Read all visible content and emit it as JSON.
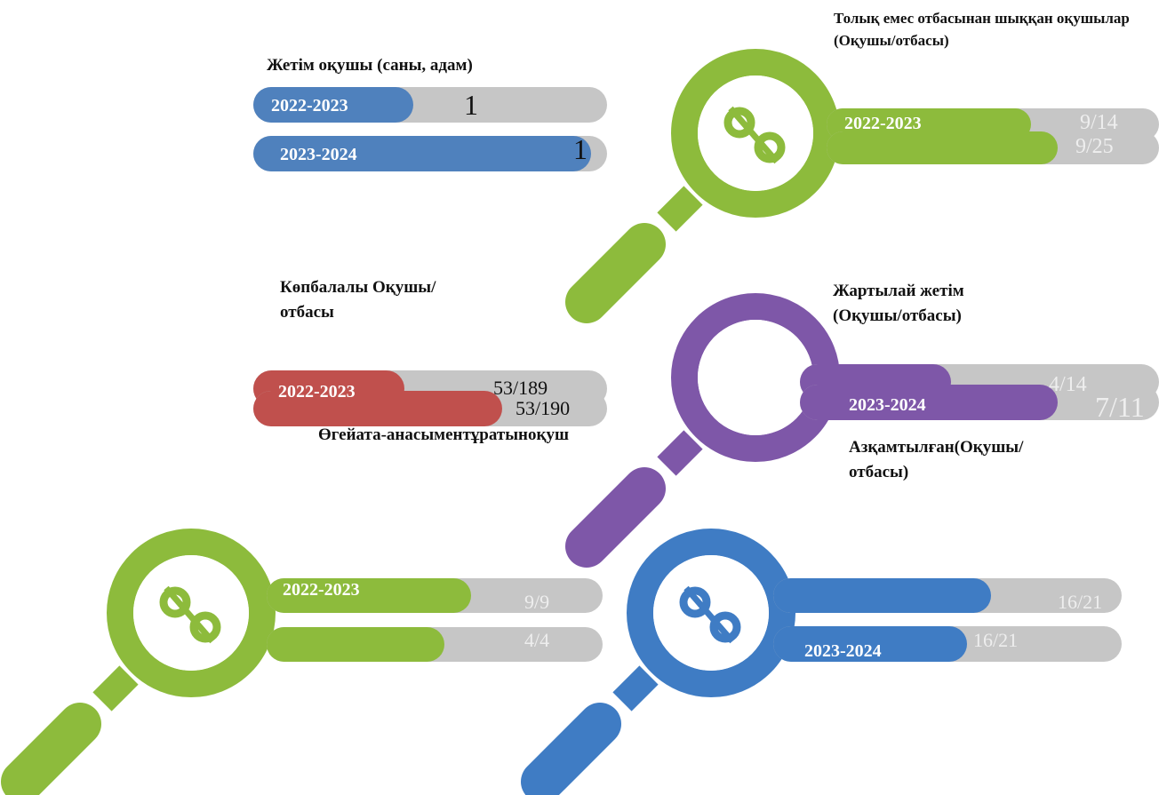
{
  "panels": [
    {
      "title": "Жетім оқушы (саны, адам)",
      "rows": [
        {
          "label": "2022-2023",
          "value": "1"
        },
        {
          "label": "2023-2024",
          "value": "1"
        }
      ]
    },
    {
      "title": "Толық емес отбасынан шыққан оқушылар (Оқушы/отбасы)",
      "rows": [
        {
          "label": "2022-2023",
          "value": "9/14"
        },
        {
          "value": "9/25"
        }
      ]
    },
    {
      "title": "Көпбалалы Оқушы/отбасы",
      "rows": [
        {
          "label": "2022-2023",
          "value": "53/189"
        },
        {
          "value": "53/190"
        }
      ]
    },
    {
      "title": "Жартылай жетім (Оқушы/отбасы)",
      "rows": [
        {
          "value": "4/14"
        },
        {
          "label": "2023-2024",
          "value": "7/11"
        }
      ]
    },
    {
      "title": "Өгейата-анасыментұратыноқуш",
      "rows": [
        {
          "label": "2022-2023",
          "value": "9/9"
        },
        {
          "value": "4/4"
        }
      ]
    },
    {
      "title": "Азқамтылған(Оқушы/отбасы)",
      "rows": [
        {
          "value": "16/21"
        },
        {
          "label": "2023-2024",
          "value": "16/21"
        }
      ]
    }
  ]
}
